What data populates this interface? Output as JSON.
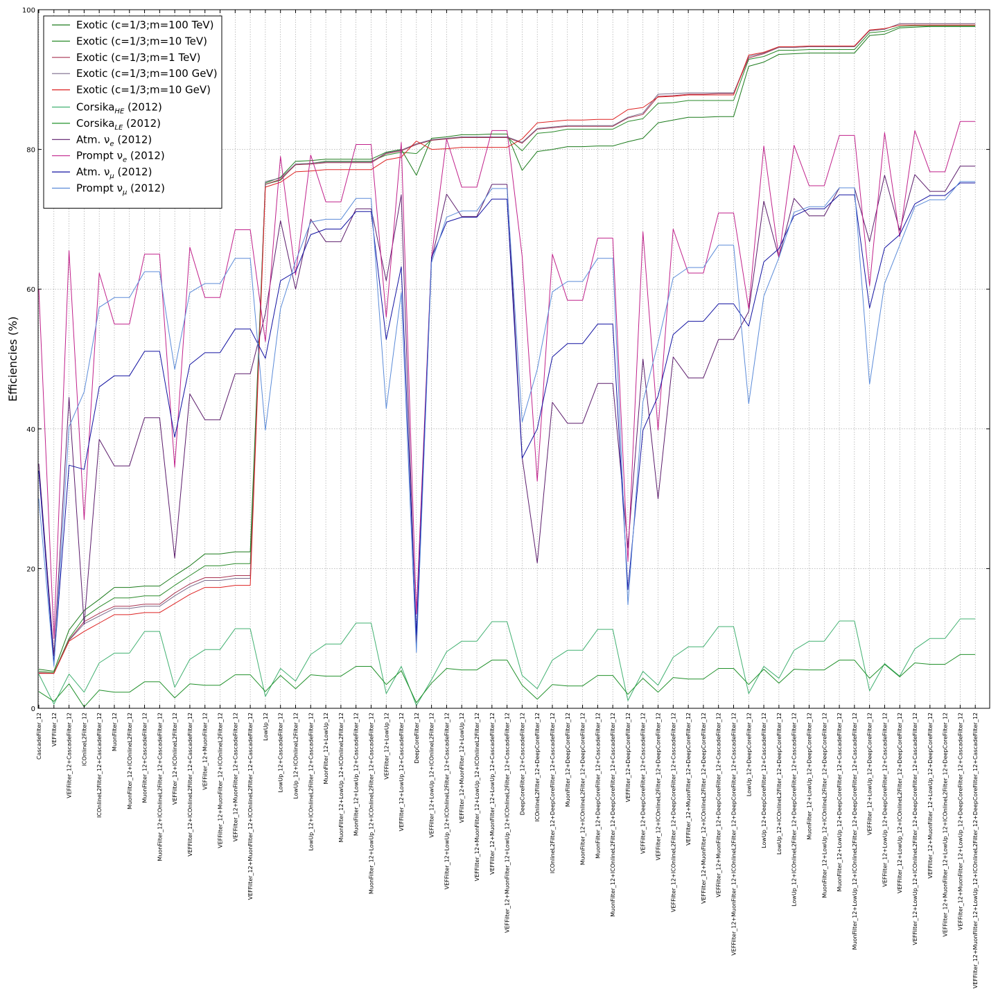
{
  "chart_data": {
    "type": "line",
    "title": "",
    "xlabel": "",
    "ylabel": "Efficiencies (%)",
    "ylim": [
      0,
      100
    ],
    "yticks": [
      "0",
      "20",
      "40",
      "60",
      "80",
      "100"
    ],
    "grid": true,
    "legend_position": "top-left",
    "categories": [
      "CascadeFilter_12",
      "VEFFilter_12",
      "VEFFilter_12+CascadeFilter_12",
      "ICOnlineL2Filter_12",
      "ICOnlineL2Filter_12+CascadeFilter_12",
      "MuonFilter_12",
      "MuonFilter_12+ICOnlineL2Filter_12",
      "MuonFilter_12+CascadeFilter_12",
      "MuonFilter_12+ICOnlineL2Filter_12+CascadeFilter_12",
      "VEFFilter_12+ICOnlineL2Filter_12",
      "VEFFilter_12+ICOnlineL2Filter_12+CascadeFilter_12",
      "VEFFilter_12+MuonFilter_12",
      "VEFFilter_12+MuonFilter_12+ICOnlineL2Filter_12",
      "VEFFilter_12+MuonFilter_12+CascadeFilter_12",
      "VEFFilter_12+MuonFilter_12+ICOnlineL2Filter_12+CascadeFilter_12",
      "LowUp_12",
      "LowUp_12+CascadeFilter_12",
      "LowUp_12+ICOnlineL2Filter_12",
      "LowUp_12+ICOnlineL2Filter_12+CascadeFilter_12",
      "MuonFilter_12+LowUp_12",
      "MuonFilter_12+LowUp_12+ICOnlineL2Filter_12",
      "MuonFilter_12+LowUp_12+CascadeFilter_12",
      "MuonFilter_12+LowUp_12+ICOnlineL2Filter_12+CascadeFilter_12",
      "VEFFilter_12+LowUp_12",
      "VEFFilter_12+LowUp_12+CascadeFilter_12",
      "DeepCoreFilter_12",
      "VEFFilter_12+LowUp_12+ICOnlineL2Filter_12",
      "VEFFilter_12+LowUp_12+ICOnlineL2Filter_12+CascadeFilter_12",
      "VEFFilter_12+MuonFilter_12+LowUp_12",
      "VEFFilter_12+MuonFilter_12+LowUp_12+ICOnlineL2Filter_12",
      "VEFFilter_12+MuonFilter_12+LowUp_12+CascadeFilter_12",
      "VEFFilter_12+MuonFilter_12+LowUp_12+ICOnlineL2Filter_12+CascadeFilter_12",
      "DeepCoreFilter_12+CascadeFilter_12",
      "ICOnlineL2Filter_12+DeepCoreFilter_12",
      "ICOnlineL2Filter_12+DeepCoreFilter_12+CascadeFilter_12",
      "MuonFilter_12+DeepCoreFilter_12",
      "MuonFilter_12+ICOnlineL2Filter_12+DeepCoreFilter_12",
      "MuonFilter_12+DeepCoreFilter_12+CascadeFilter_12",
      "MuonFilter_12+ICOnlineL2Filter_12+DeepCoreFilter_12+CascadeFilter_12",
      "VEFFilter_12+DeepCoreFilter_12",
      "VEFFilter_12+DeepCoreFilter_12+CascadeFilter_12",
      "VEFFilter_12+ICOnlineL2Filter_12+DeepCoreFilter_12",
      "VEFFilter_12+ICOnlineL2Filter_12+DeepCoreFilter_12+CascadeFilter_12",
      "VEFFilter_12+MuonFilter_12+DeepCoreFilter_12",
      "VEFFilter_12+MuonFilter_12+ICOnlineL2Filter_12+DeepCoreFilter_12",
      "VEFFilter_12+MuonFilter_12+DeepCoreFilter_12+CascadeFilter_12",
      "VEFFilter_12+MuonFilter_12+ICOnlineL2Filter_12+DeepCoreFilter_12+CascadeFilter_12",
      "LowUp_12+DeepCoreFilter_12",
      "LowUp_12+DeepCoreFilter_12+CascadeFilter_12",
      "LowUp_12+ICOnlineL2Filter_12+DeepCoreFilter_12",
      "LowUp_12+ICOnlineL2Filter_12+DeepCoreFilter_12+CascadeFilter_12",
      "MuonFilter_12+LowUp_12+DeepCoreFilter_12",
      "MuonFilter_12+LowUp_12+ICOnlineL2Filter_12+DeepCoreFilter_12",
      "MuonFilter_12+LowUp_12+DeepCoreFilter_12+CascadeFilter_12",
      "MuonFilter_12+LowUp_12+ICOnlineL2Filter_12+DeepCoreFilter_12+CascadeFilter_12",
      "VEFFilter_12+LowUp_12+DeepCoreFilter_12",
      "VEFFilter_12+LowUp_12+DeepCoreFilter_12+CascadeFilter_12",
      "VEFFilter_12+LowUp_12+ICOnlineL2Filter_12+DeepCoreFilter_12",
      "VEFFilter_12+LowUp_12+ICOnlineL2Filter_12+DeepCoreFilter_12+CascadeFilter_12",
      "VEFFilter_12+MuonFilter_12+LowUp_12+DeepCoreFilter_12",
      "VEFFilter_12+MuonFilter_12+LowUp_12+ICOnlineL2Filter_12+DeepCoreFilter_12",
      "VEFFilter_12+MuonFilter_12+LowUp_12+DeepCoreFilter_12+CascadeFilter_12",
      "VEFFilter_12+MuonFilter_12+LowUp_12+ICOnlineL2Filter_12+DeepCoreFilter_12+CascadeFilter_12"
    ],
    "series": [
      {
        "name": "Exotic (c=1/3;m=100 TeV)",
        "color": "#1a7a1a",
        "values": [
          5.6,
          5.3,
          11.2,
          14.0,
          15.6,
          17.3,
          17.3,
          17.5,
          17.5,
          19.0,
          20.4,
          22.1,
          22.1,
          22.4,
          22.4,
          75.2,
          76.0,
          78.3,
          78.4,
          78.6,
          78.6,
          78.6,
          78.6,
          79.6,
          80.0,
          76.3,
          81.6,
          81.8,
          82.1,
          82.1,
          82.2,
          82.2,
          77.0,
          79.7,
          80.0,
          80.4,
          80.4,
          80.5,
          80.5,
          81.1,
          81.6,
          83.8,
          84.2,
          84.6,
          84.6,
          84.7,
          84.7,
          91.9,
          92.5,
          93.6,
          93.7,
          93.8,
          93.8,
          93.8,
          93.8,
          96.3,
          96.5,
          97.4,
          97.5,
          97.6,
          97.6,
          97.6,
          97.6
        ]
      },
      {
        "name": "Exotic (c=1/3;m=10 TeV)",
        "color": "#2a8a2a",
        "values": [
          5.3,
          5.1,
          10.0,
          13.0,
          14.5,
          15.8,
          15.8,
          16.1,
          16.1,
          17.6,
          19.0,
          20.4,
          20.4,
          20.7,
          20.7,
          75.0,
          75.6,
          77.9,
          78.0,
          78.3,
          78.3,
          78.3,
          78.3,
          79.2,
          79.6,
          79.4,
          81.4,
          81.5,
          81.8,
          81.8,
          81.8,
          81.8,
          79.8,
          82.3,
          82.5,
          82.9,
          82.9,
          82.9,
          82.9,
          84.0,
          84.4,
          86.6,
          86.7,
          87.0,
          87.0,
          87.0,
          87.0,
          92.9,
          93.3,
          94.2,
          94.2,
          94.3,
          94.3,
          94.3,
          94.3,
          96.7,
          96.9,
          97.6,
          97.7,
          97.7,
          97.7,
          97.7,
          97.7
        ]
      },
      {
        "name": "Exotic (c=1/3;m=1 TeV)",
        "color": "#a83250",
        "values": [
          5.1,
          5.0,
          9.8,
          12.4,
          13.6,
          14.6,
          14.6,
          14.9,
          14.9,
          16.5,
          17.8,
          18.7,
          18.7,
          19.0,
          19.0,
          75.0,
          75.7,
          77.8,
          77.9,
          78.1,
          78.1,
          78.1,
          78.1,
          79.4,
          79.8,
          80.7,
          81.3,
          81.5,
          81.7,
          81.7,
          81.7,
          81.7,
          80.9,
          82.9,
          83.1,
          83.3,
          83.3,
          83.3,
          83.3,
          84.5,
          85.0,
          87.6,
          87.7,
          87.9,
          87.9,
          88.0,
          88.0,
          93.1,
          93.7,
          94.6,
          94.6,
          94.7,
          94.7,
          94.7,
          94.7,
          97.0,
          97.2,
          98.0,
          98.0,
          98.0,
          98.0,
          98.0,
          98.0
        ]
      },
      {
        "name": "Exotic (c=1/3;m=100 GeV)",
        "color": "#7a6a8a",
        "values": [
          5.0,
          5.0,
          9.7,
          12.1,
          13.2,
          14.3,
          14.3,
          14.6,
          14.6,
          16.1,
          17.4,
          18.3,
          18.3,
          18.6,
          18.6,
          75.4,
          75.9,
          77.9,
          78.0,
          78.2,
          78.2,
          78.2,
          78.2,
          79.5,
          79.9,
          80.8,
          81.4,
          81.6,
          81.8,
          81.8,
          81.8,
          81.8,
          81.0,
          83.0,
          83.2,
          83.4,
          83.4,
          83.4,
          83.4,
          84.6,
          85.2,
          87.9,
          88.0,
          88.1,
          88.1,
          88.1,
          88.1,
          93.3,
          93.8,
          94.6,
          94.6,
          94.7,
          94.7,
          94.7,
          94.7,
          97.0,
          97.2,
          98.0,
          98.0,
          98.0,
          98.0,
          98.0,
          98.0
        ]
      },
      {
        "name": "Exotic (c=1/3;m=10 GeV)",
        "color": "#dd2020",
        "values": [
          5.0,
          5.0,
          9.6,
          11.0,
          12.2,
          13.4,
          13.4,
          13.7,
          13.7,
          15.0,
          16.3,
          17.3,
          17.3,
          17.6,
          17.6,
          74.6,
          75.3,
          76.8,
          76.9,
          77.1,
          77.1,
          77.1,
          77.1,
          78.5,
          78.9,
          81.2,
          80.0,
          80.1,
          80.3,
          80.3,
          80.3,
          80.3,
          81.5,
          83.8,
          84.0,
          84.2,
          84.2,
          84.3,
          84.3,
          85.7,
          86.0,
          87.5,
          87.6,
          87.8,
          87.8,
          87.8,
          87.8,
          93.5,
          93.9,
          94.7,
          94.7,
          94.8,
          94.8,
          94.8,
          94.8,
          97.1,
          97.3,
          97.8,
          97.8,
          97.8,
          97.8,
          97.8,
          97.8
        ]
      },
      {
        "name": "Corsika<sub>HE</sub> (2012)",
        "color": "#40b070",
        "values": [
          4.9,
          0.6,
          4.9,
          2.3,
          6.5,
          7.9,
          7.9,
          11.0,
          11.0,
          3.0,
          7.0,
          8.4,
          8.4,
          11.4,
          11.4,
          1.7,
          5.7,
          3.9,
          7.7,
          9.2,
          9.2,
          12.2,
          12.2,
          2.1,
          6.0,
          0.4,
          4.1,
          8.1,
          9.6,
          9.6,
          12.4,
          12.4,
          4.7,
          2.8,
          6.9,
          8.3,
          8.3,
          11.3,
          11.3,
          1.1,
          5.3,
          3.3,
          7.3,
          8.8,
          8.8,
          11.7,
          11.7,
          2.1,
          6.0,
          4.3,
          8.3,
          9.6,
          9.6,
          12.5,
          12.5,
          2.5,
          6.4,
          4.6,
          8.5,
          10.0,
          10.0,
          12.8,
          12.8
        ]
      },
      {
        "name": "Corsika<sub>LE</sub> (2012)",
        "color": "#20902a",
        "values": [
          2.4,
          1.0,
          3.5,
          0.2,
          2.6,
          2.3,
          2.3,
          3.8,
          3.8,
          1.5,
          3.5,
          3.3,
          3.3,
          4.8,
          4.8,
          2.4,
          4.7,
          2.8,
          4.8,
          4.6,
          4.6,
          6.0,
          6.0,
          3.4,
          5.4,
          0.8,
          3.6,
          5.7,
          5.5,
          5.5,
          6.9,
          6.9,
          3.3,
          1.3,
          3.4,
          3.2,
          3.2,
          4.7,
          4.7,
          2.0,
          4.3,
          2.3,
          4.4,
          4.2,
          4.2,
          5.7,
          5.7,
          3.4,
          5.6,
          3.6,
          5.6,
          5.5,
          5.5,
          6.9,
          6.9,
          4.3,
          6.3,
          4.5,
          6.5,
          6.3,
          6.3,
          7.7,
          7.7
        ]
      },
      {
        "name": "Atm. ν<sub>e</sub> (2012)",
        "color": "#5a1a6a",
        "values": [
          35.0,
          7.5,
          44.5,
          12.0,
          38.5,
          34.7,
          34.7,
          41.6,
          41.6,
          21.5,
          45.0,
          41.3,
          41.3,
          47.9,
          47.9,
          56.5,
          69.8,
          60.0,
          70.0,
          66.8,
          66.8,
          71.5,
          71.5,
          61.2,
          73.5,
          9.0,
          64.2,
          73.6,
          70.4,
          70.4,
          75.0,
          75.0,
          35.9,
          20.8,
          43.8,
          40.8,
          40.8,
          46.5,
          46.5,
          23.0,
          50.0,
          30.0,
          50.3,
          47.3,
          47.3,
          52.8,
          52.8,
          56.8,
          72.6,
          64.5,
          73.0,
          70.5,
          70.5,
          74.5,
          74.5,
          66.8,
          76.3,
          68.4,
          76.4,
          74.0,
          74.0,
          77.6,
          77.6
        ]
      },
      {
        "name": "Prompt ν<sub>e</sub> (2012)",
        "color": "#c0208a",
        "values": [
          60.0,
          10.0,
          65.5,
          27.0,
          62.3,
          55.0,
          55.0,
          65.0,
          65.0,
          34.5,
          66.0,
          58.8,
          58.8,
          68.5,
          68.5,
          52.5,
          79.0,
          62.0,
          79.2,
          72.5,
          72.5,
          80.7,
          80.7,
          56.0,
          81.0,
          13.5,
          64.5,
          81.5,
          74.6,
          74.6,
          82.7,
          82.7,
          64.7,
          32.5,
          65.0,
          58.4,
          58.4,
          67.3,
          67.3,
          21.0,
          68.2,
          39.8,
          68.6,
          62.3,
          62.3,
          70.9,
          70.9,
          57.2,
          80.5,
          64.5,
          80.6,
          74.8,
          74.8,
          82.0,
          82.0,
          60.5,
          82.4,
          67.5,
          82.7,
          76.8,
          76.8,
          84.0,
          84.0
        ]
      },
      {
        "name": "Atm. ν<sub>μ</sub> (2012)",
        "color": "#1010a0",
        "values": [
          34.0,
          6.5,
          34.8,
          34.2,
          46.0,
          47.6,
          47.6,
          51.1,
          51.1,
          38.8,
          49.2,
          50.9,
          50.9,
          54.3,
          54.3,
          50.1,
          61.2,
          62.5,
          67.8,
          68.6,
          68.6,
          71.1,
          71.1,
          52.8,
          63.2,
          10.5,
          64.5,
          69.6,
          70.3,
          70.3,
          72.9,
          72.9,
          35.8,
          40.0,
          50.3,
          52.2,
          52.2,
          55.0,
          55.0,
          17.0,
          39.8,
          44.7,
          53.5,
          55.4,
          55.4,
          57.9,
          57.9,
          54.7,
          63.9,
          65.8,
          70.5,
          71.5,
          71.5,
          73.5,
          73.5,
          57.3,
          65.9,
          67.8,
          72.2,
          73.4,
          73.4,
          75.2,
          75.2
        ]
      },
      {
        "name": "Prompt ν<sub>μ</sub> (2012)",
        "color": "#5a8ad8",
        "values": [
          30.0,
          6.0,
          40.3,
          45.3,
          57.4,
          58.8,
          58.8,
          62.5,
          62.5,
          48.5,
          59.5,
          60.8,
          60.8,
          64.4,
          64.4,
          39.8,
          57.2,
          64.0,
          69.6,
          70.0,
          70.0,
          73.0,
          73.0,
          42.9,
          59.5,
          8.0,
          63.8,
          70.3,
          71.2,
          71.2,
          74.4,
          74.4,
          41.0,
          48.5,
          59.6,
          61.1,
          61.1,
          64.4,
          64.4,
          14.8,
          43.9,
          52.3,
          61.6,
          63.1,
          63.1,
          66.3,
          66.3,
          43.6,
          59.0,
          64.5,
          71.0,
          71.8,
          71.8,
          74.5,
          74.5,
          46.4,
          60.8,
          66.3,
          71.8,
          72.8,
          72.8,
          75.4,
          75.4
        ]
      }
    ]
  }
}
